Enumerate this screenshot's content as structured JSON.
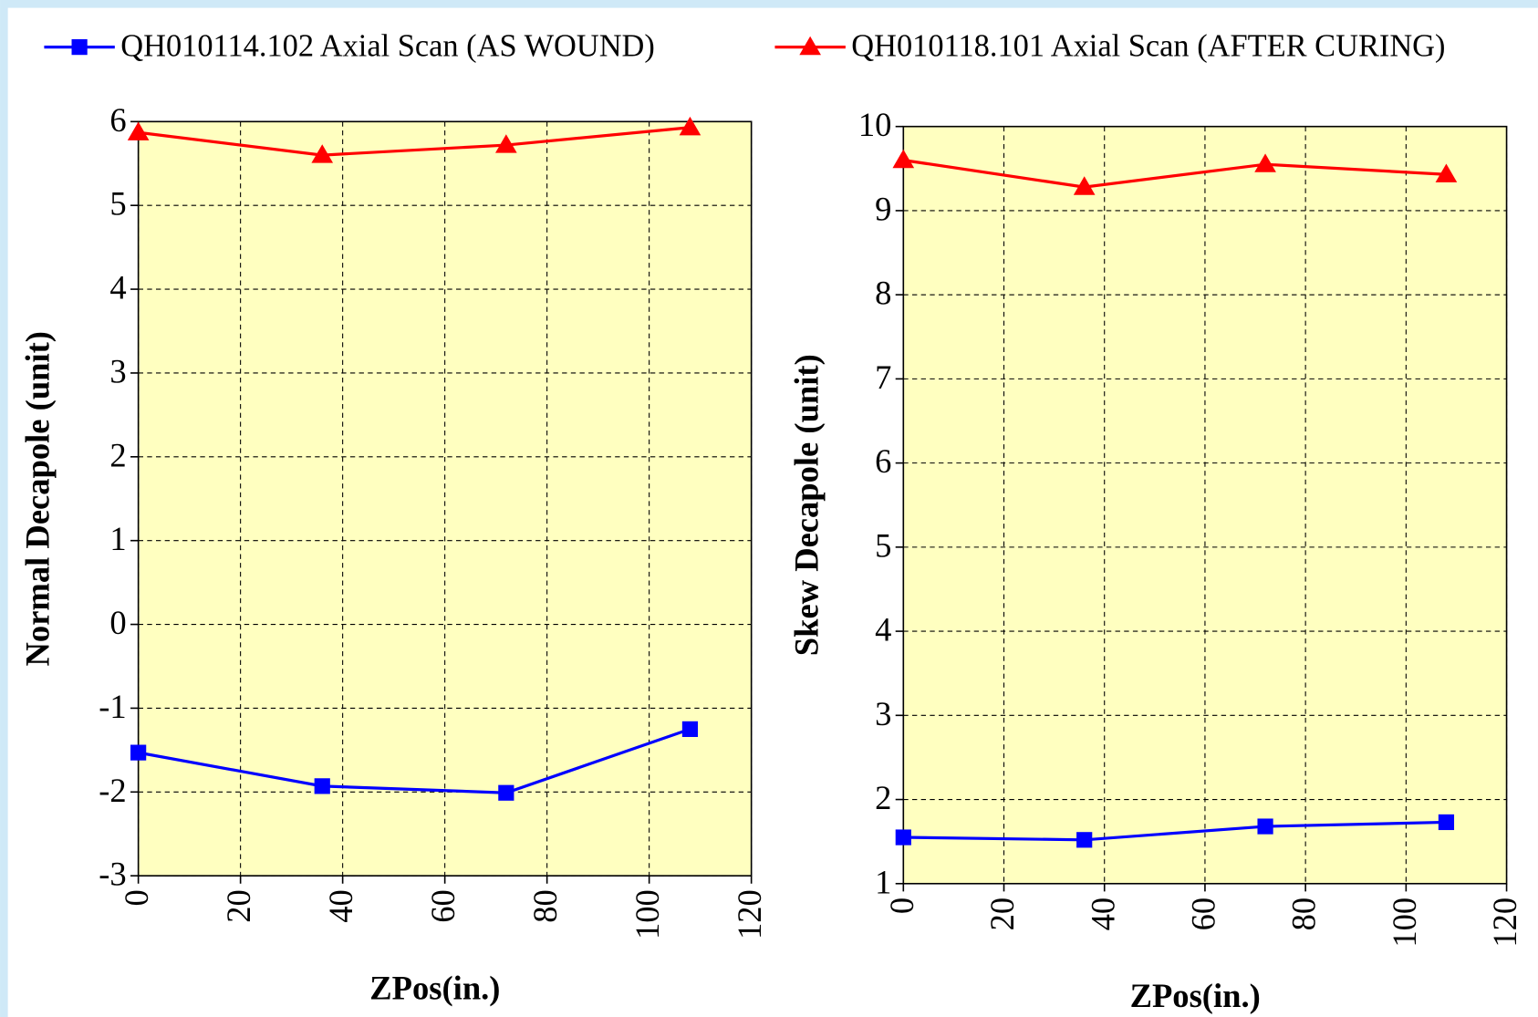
{
  "chart_data": [
    {
      "type": "line",
      "ylabel": "Normal Decapole  (unit)",
      "xlabel": "ZPos(in.)",
      "x": [
        0,
        36,
        72,
        108
      ],
      "series": [
        {
          "name": "QH010114.102 Axial Scan (AS WOUND)",
          "color": "#0000ff",
          "marker": "square",
          "values": [
            -1.53,
            -1.93,
            -2.01,
            -1.25
          ]
        },
        {
          "name": "QH010118.101 Axial Scan (AFTER CURING)",
          "color": "#ff0000",
          "marker": "triangle",
          "values": [
            5.87,
            5.6,
            5.72,
            5.93
          ]
        }
      ],
      "xlim": [
        0,
        120
      ],
      "xticks": [
        0,
        20,
        40,
        60,
        80,
        100,
        120
      ],
      "ylim": [
        -3,
        6
      ],
      "yticks": [
        -3,
        -2,
        -1,
        0,
        1,
        2,
        3,
        4,
        5,
        6
      ],
      "grid": true
    },
    {
      "type": "line",
      "ylabel": "Skew Decapole  (unit)",
      "xlabel": "ZPos(in.)",
      "x": [
        0,
        36,
        72,
        108
      ],
      "series": [
        {
          "color": "#0000ff",
          "marker": "square",
          "values": [
            1.55,
            1.52,
            1.68,
            1.73
          ]
        },
        {
          "color": "#ff0000",
          "marker": "triangle",
          "values": [
            9.6,
            9.28,
            9.55,
            9.43
          ]
        }
      ],
      "xlim": [
        0,
        120
      ],
      "xticks": [
        0,
        20,
        40,
        60,
        80,
        100,
        120
      ],
      "ylim": [
        1,
        10
      ],
      "yticks": [
        1,
        2,
        3,
        4,
        5,
        6,
        7,
        8,
        9,
        10
      ],
      "grid": true
    }
  ]
}
